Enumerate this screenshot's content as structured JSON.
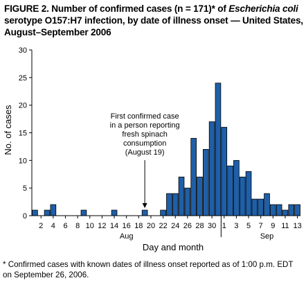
{
  "figure": {
    "title_prefix": "FIGURE 2. Number of confirmed cases (n = 171)* of ",
    "title_italic": "Escherichia coli",
    "title_suffix": " serotype O157:H7 infection, by date of illness onset — United States, August–September 2006",
    "footnote": "* Confirmed cases with known dates of illness onset reported as of 1:00 p.m. EDT on September 26, 2006."
  },
  "chart_data": {
    "type": "bar",
    "ylabel": "No. of cases",
    "xlabel": "Day and month",
    "ylim": [
      0,
      30
    ],
    "y_ticks": [
      0,
      5,
      10,
      15,
      20,
      25,
      30
    ],
    "categories": [
      "Aug 1",
      "Aug 2",
      "Aug 3",
      "Aug 4",
      "Aug 5",
      "Aug 6",
      "Aug 7",
      "Aug 8",
      "Aug 9",
      "Aug 10",
      "Aug 11",
      "Aug 12",
      "Aug 13",
      "Aug 14",
      "Aug 15",
      "Aug 16",
      "Aug 17",
      "Aug 18",
      "Aug 19",
      "Aug 20",
      "Aug 21",
      "Aug 22",
      "Aug 23",
      "Aug 24",
      "Aug 25",
      "Aug 26",
      "Aug 27",
      "Aug 28",
      "Aug 29",
      "Aug 30",
      "Aug 31",
      "Sep 1",
      "Sep 2",
      "Sep 3",
      "Sep 4",
      "Sep 5",
      "Sep 6",
      "Sep 7",
      "Sep 8",
      "Sep 9",
      "Sep 10",
      "Sep 11",
      "Sep 12",
      "Sep 13"
    ],
    "values": [
      1,
      0,
      1,
      2,
      0,
      0,
      0,
      0,
      1,
      0,
      0,
      0,
      0,
      1,
      0,
      0,
      0,
      0,
      1,
      0,
      0,
      1,
      4,
      4,
      7,
      5,
      14,
      7,
      12,
      17,
      24,
      16,
      9,
      10,
      7,
      8,
      3,
      3,
      4,
      2,
      2,
      1,
      2,
      2
    ],
    "x_tick_labels": [
      "2",
      "4",
      "6",
      "8",
      "10",
      "12",
      "14",
      "16",
      "18",
      "20",
      "22",
      "24",
      "26",
      "28",
      "30",
      "1",
      "3",
      "5",
      "7",
      "9",
      "11",
      "13"
    ],
    "x_tick_indices": [
      1,
      3,
      5,
      7,
      9,
      11,
      13,
      15,
      17,
      19,
      21,
      23,
      25,
      27,
      29,
      31,
      33,
      35,
      37,
      39,
      41,
      43
    ],
    "month_labels": [
      {
        "label": "Aug",
        "center_index": 15
      },
      {
        "label": "Sep",
        "center_index": 38
      }
    ],
    "month_divider_after_index": 30,
    "annotation": {
      "lines": [
        "First confirmed case",
        "in a person reporting",
        "fresh spinach",
        "consumption",
        "(August 19)"
      ],
      "target_index": 18
    },
    "bar_color": "#1f5fa8",
    "bar_edge_color": "#000000",
    "grid": false
  }
}
